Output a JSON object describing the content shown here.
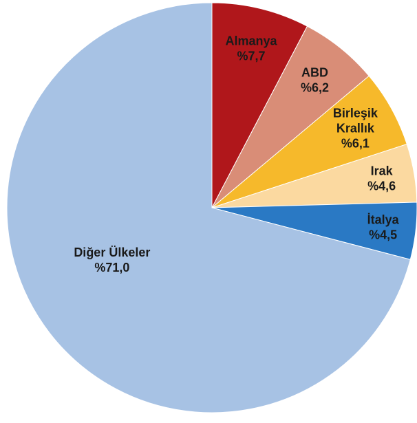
{
  "chart_data": {
    "type": "pie",
    "title": "",
    "start_angle_deg": 0,
    "direction": "clockwise",
    "slices": [
      {
        "label_lines": [
          "Almanya"
        ],
        "value_label": "%7,7",
        "value": 7.7,
        "color": "#b0171b"
      },
      {
        "label_lines": [
          "ABD"
        ],
        "value_label": "%6,2",
        "value": 6.2,
        "color": "#d98d77"
      },
      {
        "label_lines": [
          "Birleşik",
          "Krallık"
        ],
        "value_label": "%6,1",
        "value": 6.1,
        "color": "#f6b92b"
      },
      {
        "label_lines": [
          "Irak"
        ],
        "value_label": "%4,6",
        "value": 4.6,
        "color": "#fbd9a0"
      },
      {
        "label_lines": [
          "İtalya"
        ],
        "value_label": "%4,5",
        "value": 4.5,
        "color": "#2a79c4"
      },
      {
        "label_lines": [
          "Diğer Ülkeler"
        ],
        "value_label": "%71,0",
        "value": 71.0,
        "color": "#a7c2e4"
      }
    ],
    "legend": "none"
  }
}
